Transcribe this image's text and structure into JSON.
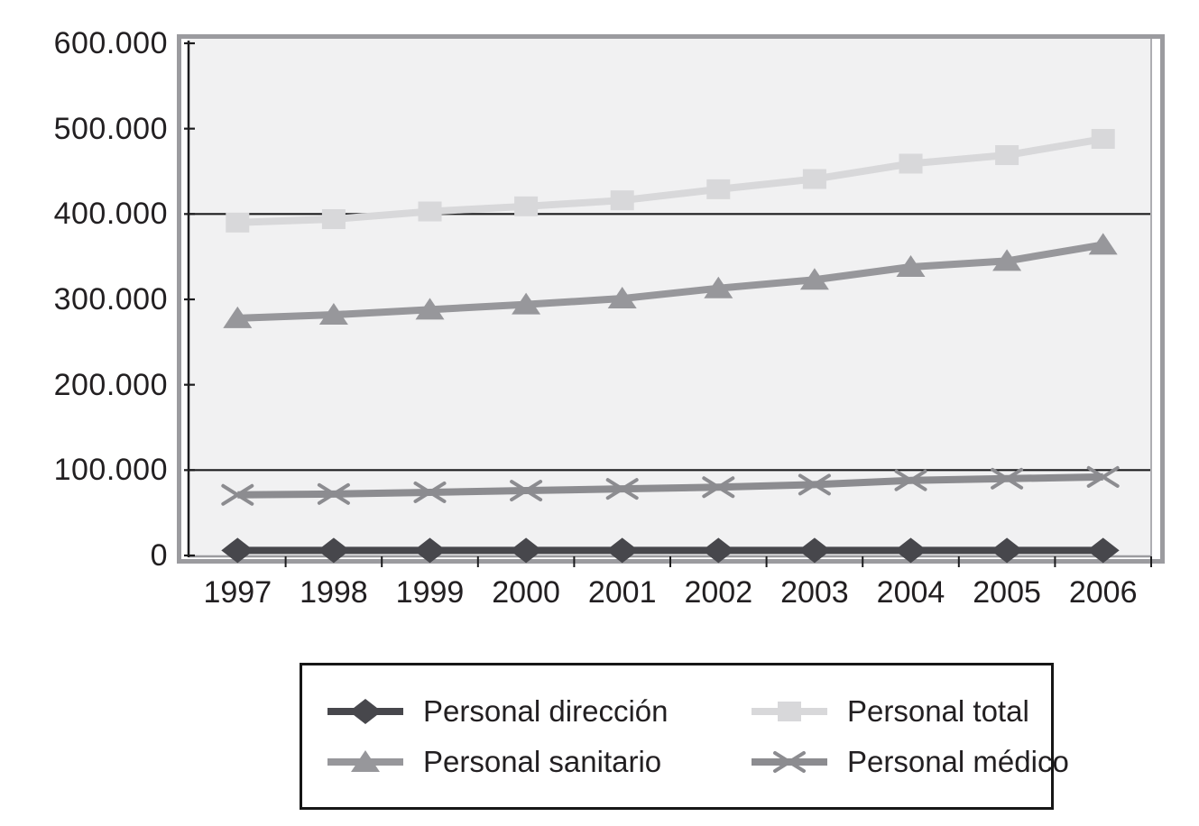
{
  "chart_data": {
    "type": "line",
    "title": "",
    "x_labels": [
      "1997",
      "1998",
      "1999",
      "2000",
      "2001",
      "2002",
      "2003",
      "2004",
      "2005",
      "2006"
    ],
    "y_axis": {
      "min": 0,
      "max": 600000,
      "ticks": [
        {
          "label": "600.000",
          "value": 600000
        },
        {
          "label": "500.000",
          "value": 500000
        },
        {
          "label": "400.000",
          "value": 400000
        },
        {
          "label": "300.000",
          "value": 300000
        },
        {
          "label": "200.000",
          "value": 200000
        },
        {
          "label": "100.000",
          "value": 100000
        },
        {
          "label": "0",
          "value": 0
        }
      ]
    },
    "gridline_values": [
      400000,
      100000
    ],
    "plot_background": "#f1f1f2",
    "frame_color": "#9b9b9f",
    "axis_color": "#1c1c1e",
    "grid_color": "#1c1c1e",
    "series": [
      {
        "name": "Personal total",
        "marker": "square",
        "color": "#d8d8da",
        "values": [
          390000,
          394000,
          403000,
          409000,
          416000,
          429000,
          441000,
          459000,
          469000,
          488000
        ]
      },
      {
        "name": "Personal sanitario",
        "marker": "triangle",
        "color": "#97979b",
        "values": [
          278000,
          282000,
          288000,
          294000,
          301000,
          313000,
          323000,
          338000,
          345000,
          364000
        ]
      },
      {
        "name": "Personal médico",
        "marker": "x",
        "color": "#8c8c90",
        "values": [
          71000,
          72000,
          74000,
          76000,
          78000,
          80000,
          83000,
          88000,
          90000,
          92000
        ]
      },
      {
        "name": "Personal dirección",
        "marker": "diamond",
        "color": "#47474c",
        "values": [
          6000,
          6000,
          6000,
          6000,
          6000,
          6000,
          6000,
          6000,
          6000,
          6000
        ]
      }
    ],
    "legend": {
      "position": "bottom",
      "items": [
        {
          "label": "Personal dirección",
          "series": "Personal dirección"
        },
        {
          "label": "Personal total",
          "series": "Personal total"
        },
        {
          "label": "Personal sanitario",
          "series": "Personal sanitario"
        },
        {
          "label": "Personal médico",
          "series": "Personal médico"
        }
      ]
    }
  }
}
